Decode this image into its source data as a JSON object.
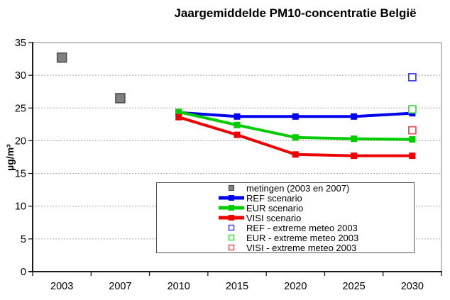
{
  "chart_data": {
    "type": "line",
    "title": "Jaargemiddelde PM10-concentratie België",
    "xlabel": "",
    "ylabel": "µg/m³",
    "ylim": [
      0,
      35
    ],
    "ytick_step": 5,
    "grid": "horizontal-dotted",
    "legend_position": "inside-bottom-center",
    "categories": [
      "2003",
      "2007",
      "2010",
      "2015",
      "2020",
      "2025",
      "2030"
    ],
    "series": [
      {
        "name": "metingen (2003 en 2007)",
        "type": "scatter",
        "legend_marker": "filled-square",
        "color": "#808080",
        "border_color": "#4d4d4d",
        "points": [
          {
            "x": "2003",
            "y": 32.7
          },
          {
            "x": "2007",
            "y": 26.5
          }
        ]
      },
      {
        "name": "REF scenario",
        "type": "line",
        "legend_marker": "line-square",
        "color": "#0000ee",
        "points": [
          {
            "x": "2010",
            "y": 24.3
          },
          {
            "x": "2015",
            "y": 23.7
          },
          {
            "x": "2020",
            "y": 23.7
          },
          {
            "x": "2025",
            "y": 23.7
          },
          {
            "x": "2030",
            "y": 24.2
          }
        ]
      },
      {
        "name": "EUR scenario",
        "type": "line",
        "legend_marker": "line-square",
        "color": "#00cc00",
        "points": [
          {
            "x": "2010",
            "y": 24.4
          },
          {
            "x": "2015",
            "y": 22.4
          },
          {
            "x": "2020",
            "y": 20.5
          },
          {
            "x": "2025",
            "y": 20.3
          },
          {
            "x": "2030",
            "y": 20.2
          }
        ]
      },
      {
        "name": "VISI scenario",
        "type": "line",
        "legend_marker": "line-square",
        "color": "#ee0000",
        "points": [
          {
            "x": "2010",
            "y": 23.6
          },
          {
            "x": "2015",
            "y": 20.9
          },
          {
            "x": "2020",
            "y": 17.9
          },
          {
            "x": "2025",
            "y": 17.7
          },
          {
            "x": "2030",
            "y": 17.7
          }
        ]
      },
      {
        "name": "REF - extreme meteo 2003",
        "type": "scatter",
        "legend_marker": "open-square",
        "color": "#4444ee",
        "points": [
          {
            "x": "2030",
            "y": 29.7
          }
        ]
      },
      {
        "name": "EUR - extreme meteo 2003",
        "type": "scatter",
        "legend_marker": "open-square",
        "color": "#44dd44",
        "points": [
          {
            "x": "2030",
            "y": 24.8
          }
        ]
      },
      {
        "name": "VISI - extreme meteo 2003",
        "type": "scatter",
        "legend_marker": "open-square",
        "color": "#ee5555",
        "points": [
          {
            "x": "2030",
            "y": 21.6
          }
        ]
      }
    ],
    "style": {
      "axis_color": "#1a1a1a",
      "plot_border_color": "#808080",
      "gridline_color": "#a6a6a6",
      "tick_label_color": "#000000",
      "background": "#ffffff"
    }
  }
}
